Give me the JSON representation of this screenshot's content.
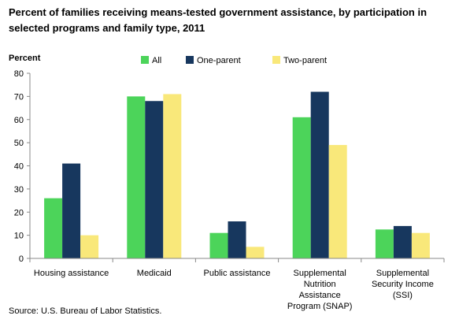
{
  "chart_data": {
    "type": "bar",
    "title": "Percent of families receiving means-tested government assistance, by participation in selected programs and family type, 2011",
    "ylabel": "Percent",
    "xlabel": "",
    "ylim": [
      0,
      80
    ],
    "yticks": [
      0,
      10,
      20,
      30,
      40,
      50,
      60,
      70,
      80
    ],
    "grid": false,
    "legend_position": "top",
    "categories": [
      [
        "Housing assistance"
      ],
      [
        "Medicaid"
      ],
      [
        "Public assistance"
      ],
      [
        "Supplemental",
        "Nutrition",
        "Assistance",
        "Program (SNAP)"
      ],
      [
        "Supplemental",
        "Security Income",
        "(SSI)"
      ]
    ],
    "series": [
      {
        "name": "All",
        "color": "#4cd45a",
        "values": [
          26,
          70,
          11,
          61,
          12.5
        ]
      },
      {
        "name": "One-parent",
        "color": "#17375e",
        "values": [
          41,
          68,
          16,
          72,
          14
        ]
      },
      {
        "name": "Two-parent",
        "color": "#f9e87a",
        "values": [
          10,
          71,
          5,
          49,
          11
        ]
      }
    ],
    "source": "Source: U.S. Bureau of Labor Statistics."
  }
}
